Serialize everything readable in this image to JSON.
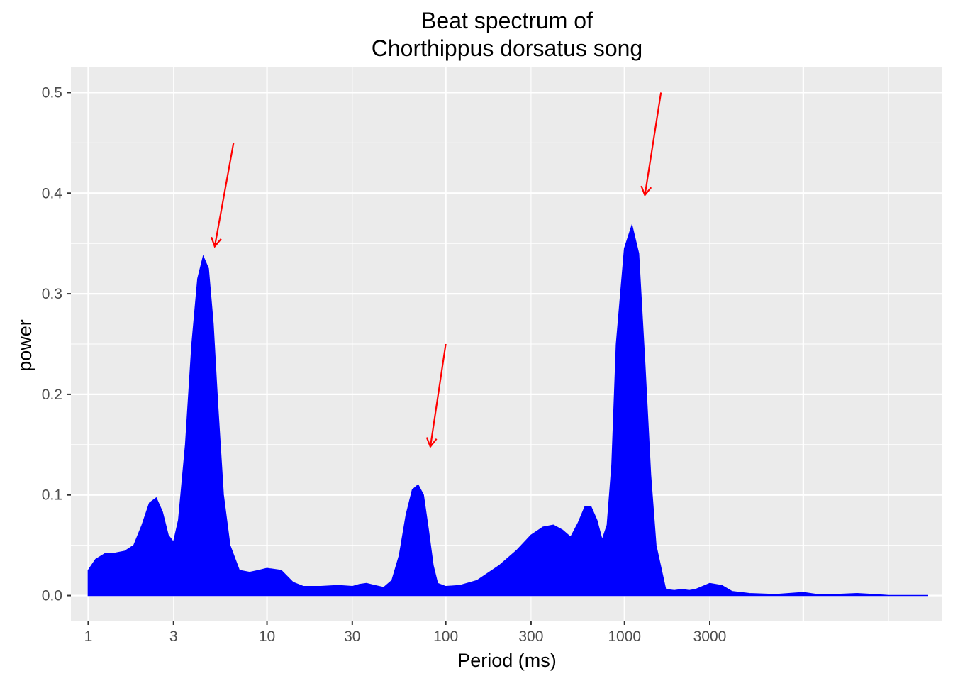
{
  "chart_data": {
    "type": "area",
    "title_lines": [
      "Beat spectrum of",
      "Chorthippus dorsatus song"
    ],
    "xlabel": "Period (ms)",
    "ylabel": "power",
    "x_scale": "log10",
    "xlim": [
      0.8,
      60000
    ],
    "ylim": [
      -0.025,
      0.525
    ],
    "x_ticks": [
      1,
      3,
      10,
      30,
      100,
      300,
      1000,
      3000
    ],
    "x_tick_labels": [
      "1",
      "3",
      "10",
      "30",
      "100",
      "300",
      "1000",
      "3000"
    ],
    "x_major_gridlines": [
      1,
      10,
      100,
      1000,
      10000
    ],
    "x_minor_gridlines": [
      3,
      30,
      300,
      3000,
      30000
    ],
    "y_ticks": [
      0.0,
      0.1,
      0.2,
      0.3,
      0.4,
      0.5
    ],
    "y_tick_labels": [
      "0.0",
      "0.1",
      "0.2",
      "0.3",
      "0.4",
      "0.5"
    ],
    "grid": true,
    "series": [
      {
        "color": "#0000ff",
        "x": [
          1,
          1.1,
          1.25,
          1.4,
          1.6,
          1.8,
          2.0,
          2.2,
          2.4,
          2.6,
          2.8,
          3.0,
          3.2,
          3.5,
          3.8,
          4.1,
          4.4,
          4.7,
          5.0,
          5.3,
          5.7,
          6.2,
          7.0,
          8.0,
          9.0,
          10,
          12,
          14,
          16,
          18,
          20,
          25,
          30,
          33,
          36,
          40,
          45,
          50,
          55,
          60,
          65,
          70,
          75,
          80,
          85,
          90,
          100,
          120,
          150,
          200,
          250,
          300,
          350,
          400,
          450,
          500,
          550,
          600,
          650,
          700,
          750,
          800,
          850,
          900,
          1000,
          1100,
          1200,
          1300,
          1400,
          1500,
          1700,
          1900,
          2100,
          2300,
          2500,
          3000,
          3500,
          4000,
          5000,
          7000,
          10000,
          12000,
          15000,
          20000,
          25000,
          30000,
          40000,
          50000
        ],
        "y": [
          0.025,
          0.036,
          0.042,
          0.042,
          0.044,
          0.05,
          0.07,
          0.092,
          0.097,
          0.083,
          0.06,
          0.053,
          0.075,
          0.15,
          0.25,
          0.315,
          0.337,
          0.325,
          0.27,
          0.19,
          0.1,
          0.05,
          0.025,
          0.023,
          0.025,
          0.027,
          0.025,
          0.013,
          0.009,
          0.009,
          0.009,
          0.01,
          0.009,
          0.011,
          0.012,
          0.01,
          0.008,
          0.015,
          0.04,
          0.08,
          0.105,
          0.11,
          0.1,
          0.065,
          0.03,
          0.012,
          0.009,
          0.01,
          0.015,
          0.03,
          0.045,
          0.06,
          0.068,
          0.07,
          0.065,
          0.058,
          0.072,
          0.088,
          0.088,
          0.075,
          0.055,
          0.07,
          0.13,
          0.25,
          0.345,
          0.368,
          0.34,
          0.23,
          0.12,
          0.05,
          0.006,
          0.005,
          0.006,
          0.005,
          0.006,
          0.012,
          0.01,
          0.004,
          0.002,
          0.001,
          0.003,
          0.001,
          0.001,
          0.002,
          0.001,
          0.0,
          0.0,
          0.0
        ]
      }
    ],
    "annotations": [
      {
        "type": "arrow",
        "color": "#ff0000",
        "from": [
          6.5,
          0.45
        ],
        "to": [
          5.1,
          0.347
        ]
      },
      {
        "type": "arrow",
        "color": "#ff0000",
        "from": [
          100,
          0.25
        ],
        "to": [
          82,
          0.148
        ]
      },
      {
        "type": "arrow",
        "color": "#ff0000",
        "from": [
          1600,
          0.5
        ],
        "to": [
          1300,
          0.398
        ]
      }
    ]
  }
}
